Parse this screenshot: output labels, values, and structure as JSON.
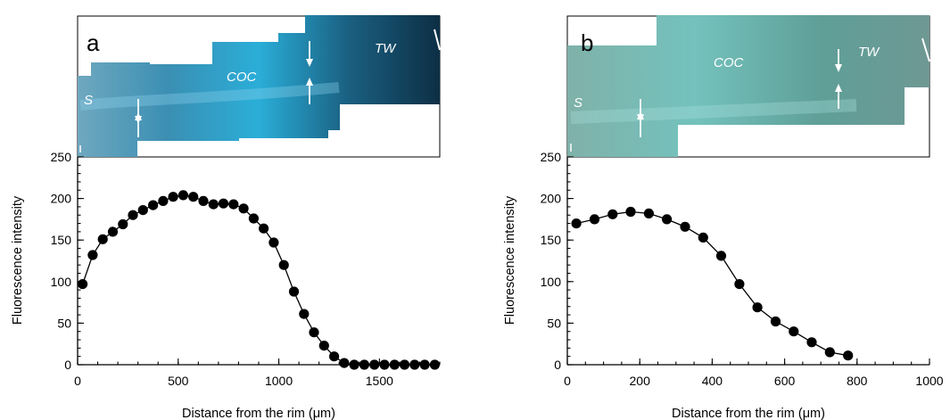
{
  "chart_data": [
    {
      "type": "scatter",
      "panel": "a",
      "micrograph_labels": [
        "S",
        "COC",
        "TW"
      ],
      "xlabel": "Distance from the rim (μm)",
      "ylabel": "Fluorescence intensity",
      "xlim": [
        0,
        1800
      ],
      "ylim": [
        0,
        250
      ],
      "xticks": [
        "0",
        "500",
        "1000",
        "1500"
      ],
      "yticks": [
        "0",
        "50",
        "100",
        "150",
        "200",
        "250"
      ],
      "series": [
        {
          "x": [
            25,
            75,
            125,
            175,
            225,
            275,
            325,
            375,
            425,
            475,
            525,
            575,
            625,
            675,
            725,
            775,
            825,
            875,
            925,
            975,
            1025,
            1075,
            1125,
            1175,
            1225,
            1275,
            1325,
            1375,
            1425,
            1475,
            1525,
            1575,
            1625,
            1675,
            1725,
            1775
          ],
          "y": [
            97,
            132,
            151,
            160,
            169,
            180,
            186,
            192,
            197,
            202,
            204,
            202,
            197,
            193,
            194,
            193,
            188,
            176,
            164,
            147,
            120,
            88,
            61,
            39,
            23,
            10,
            2,
            0,
            0,
            0,
            0,
            0,
            0,
            0,
            0,
            0
          ]
        }
      ]
    },
    {
      "type": "scatter",
      "panel": "b",
      "micrograph_labels": [
        "S",
        "COC",
        "TW"
      ],
      "xlabel": "Distance from the rim (μm)",
      "ylabel": "Fluorescence intensity",
      "xlim": [
        0,
        1000
      ],
      "ylim": [
        0,
        250
      ],
      "xticks": [
        "0",
        "200",
        "400",
        "600",
        "800",
        "1000"
      ],
      "yticks": [
        "0",
        "50",
        "100",
        "150",
        "200",
        "250"
      ],
      "series": [
        {
          "x": [
            25,
            75,
            125,
            175,
            225,
            275,
            325,
            375,
            425,
            475,
            525,
            575,
            625,
            675,
            725,
            775
          ],
          "y": [
            170,
            175,
            181,
            184,
            182,
            175,
            166,
            153,
            131,
            97,
            69,
            52,
            40,
            27,
            15,
            11
          ]
        }
      ]
    }
  ]
}
